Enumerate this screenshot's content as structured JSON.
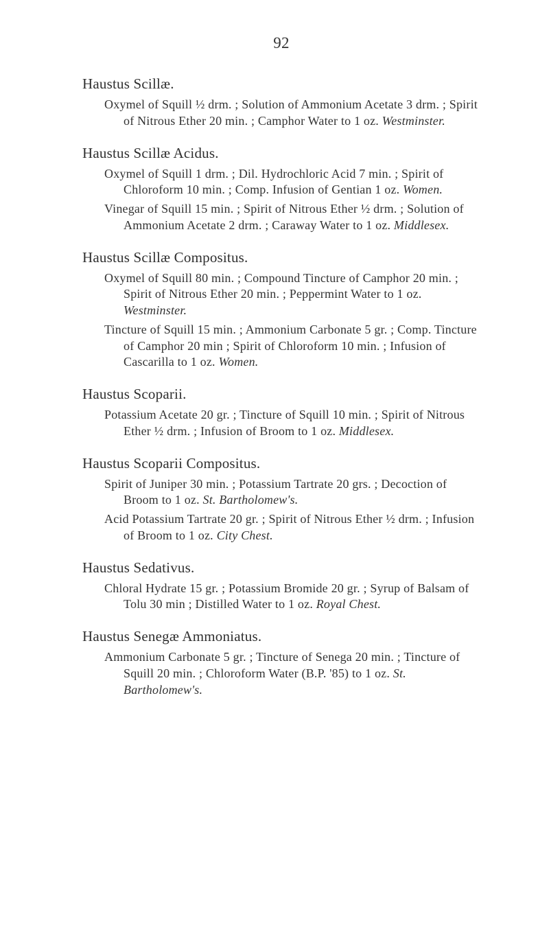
{
  "page_number": "92",
  "entries": [
    {
      "heading": "Haustus Scillæ.",
      "paragraphs": [
        {
          "segments": [
            {
              "t": "Oxymel of Squill ½ drm. ; Solution of Ammonium Acetate 3 drm. ; Spirit of Nitrous Ether 20 min. ; Camphor Water to 1 oz.   "
            },
            {
              "t": "Westminster.",
              "i": true
            }
          ]
        }
      ]
    },
    {
      "heading": "Haustus Scillæ Acidus.",
      "paragraphs": [
        {
          "segments": [
            {
              "t": "Oxymel of Squill 1 drm. ; Dil. Hydrochloric Acid 7 min. ; Spirit of Chloroform 10 min. ; Comp. Infusion of Gentian 1 oz.   "
            },
            {
              "t": "Women.",
              "i": true
            }
          ]
        },
        {
          "segments": [
            {
              "t": "Vinegar of Squill 15 min. ; Spirit of Nitrous Ether ½ drm. ; Solution of Ammonium Acetate 2 drm. ; Caraway Water to 1 oz.   "
            },
            {
              "t": "Middlesex.",
              "i": true
            }
          ]
        }
      ]
    },
    {
      "heading": "Haustus Scillæ Compositus.",
      "paragraphs": [
        {
          "segments": [
            {
              "t": "Oxymel of Squill 80 min. ; Compound Tincture of Camphor 20 min. ; Spirit of Nitrous Ether 20 min. ; Peppermint Water to 1 oz.   "
            },
            {
              "t": "Westminster.",
              "i": true
            }
          ]
        },
        {
          "segments": [
            {
              "t": "Tincture of Squill 15 min. ; Ammonium Carbonate 5 gr. ; Comp. Tincture of Camphor 20 min ; Spirit of Chloroform 10 min. ; Infusion of Cascarilla to 1 oz.   "
            },
            {
              "t": "Women.",
              "i": true
            }
          ]
        }
      ]
    },
    {
      "heading": "Haustus Scoparii.",
      "paragraphs": [
        {
          "segments": [
            {
              "t": "Potassium Acetate 20 gr. ; Tincture of Squill 10 min. ; Spirit of Nitrous Ether ½ drm. ; Infusion of Broom to 1 oz.   "
            },
            {
              "t": "Middlesex.",
              "i": true
            }
          ]
        }
      ]
    },
    {
      "heading": "Haustus Scoparii Compositus.",
      "paragraphs": [
        {
          "segments": [
            {
              "t": "Spirit of Juniper 30 min. ; Potassium Tartrate 20 grs. ; Decoction of Broom to 1 oz.   "
            },
            {
              "t": "St. Bartholomew's.",
              "i": true
            }
          ]
        },
        {
          "segments": [
            {
              "t": "Acid Potassium Tartrate 20 gr. ; Spirit of Nitrous Ether ½ drm. ; Infusion of Broom to 1 oz.   "
            },
            {
              "t": "City Chest.",
              "i": true
            }
          ]
        }
      ]
    },
    {
      "heading": "Haustus Sedativus.",
      "paragraphs": [
        {
          "segments": [
            {
              "t": "Chloral Hydrate 15 gr. ; Potassium Bromide 20 gr. ; Syrup of Balsam of Tolu 30 min ; Distilled Water to 1 oz.   "
            },
            {
              "t": "Royal Chest.",
              "i": true
            }
          ]
        }
      ]
    },
    {
      "heading": "Haustus Senegæ Ammoniatus.",
      "paragraphs": [
        {
          "segments": [
            {
              "t": "Ammonium Carbonate 5 gr. ; Tincture of Senega 20 min. ; Tincture of Squill 20 min. ; Chloroform Water (B.P. '85) to 1 oz.   "
            },
            {
              "t": "St. Bartholomew's.",
              "i": true
            }
          ]
        }
      ]
    }
  ]
}
